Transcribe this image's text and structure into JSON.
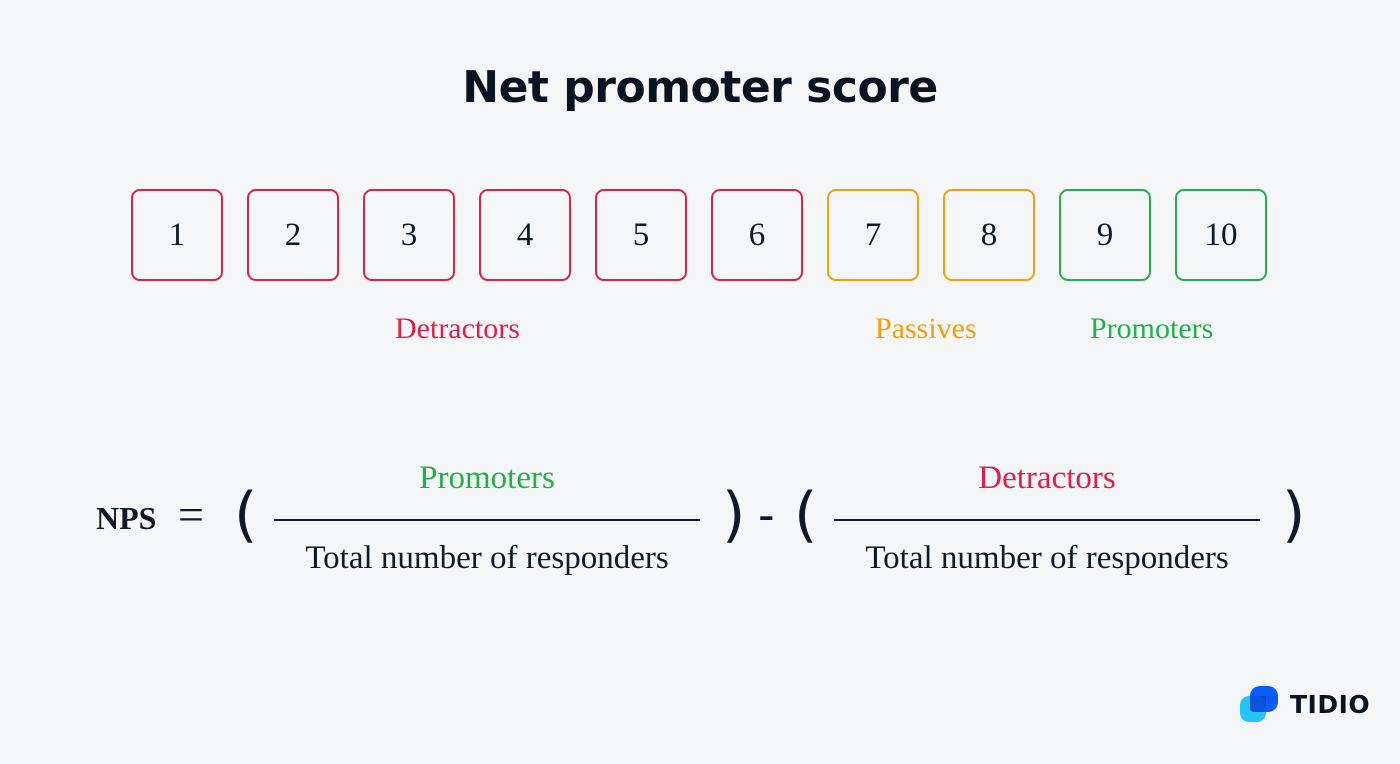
{
  "title": "Net promoter score",
  "scale": [
    {
      "value": "1",
      "group": "detractor"
    },
    {
      "value": "2",
      "group": "detractor"
    },
    {
      "value": "3",
      "group": "detractor"
    },
    {
      "value": "4",
      "group": "detractor"
    },
    {
      "value": "5",
      "group": "detractor"
    },
    {
      "value": "6",
      "group": "detractor"
    },
    {
      "value": "7",
      "group": "passive"
    },
    {
      "value": "8",
      "group": "passive"
    },
    {
      "value": "9",
      "group": "promoter"
    },
    {
      "value": "10",
      "group": "promoter"
    }
  ],
  "groups": {
    "detractors": "Detractors",
    "passives": "Passives",
    "promoters": "Promoters"
  },
  "colors": {
    "detractor": "#e11d48",
    "passive": "#f59e0b",
    "promoter": "#22b04b",
    "text": "#111827",
    "background": "#f5f6f8"
  },
  "formula": {
    "lhs": "NPS",
    "equals": "=",
    "open_paren": "(",
    "close_paren": ")",
    "minus": "-",
    "numerator_left": "Promoters",
    "denominator_left": "Total number of responders",
    "numerator_right": "Detractors",
    "denominator_right": "Total number of responders"
  },
  "logo": {
    "text": "TIDIO",
    "icon": "tidio-logo-icon"
  }
}
